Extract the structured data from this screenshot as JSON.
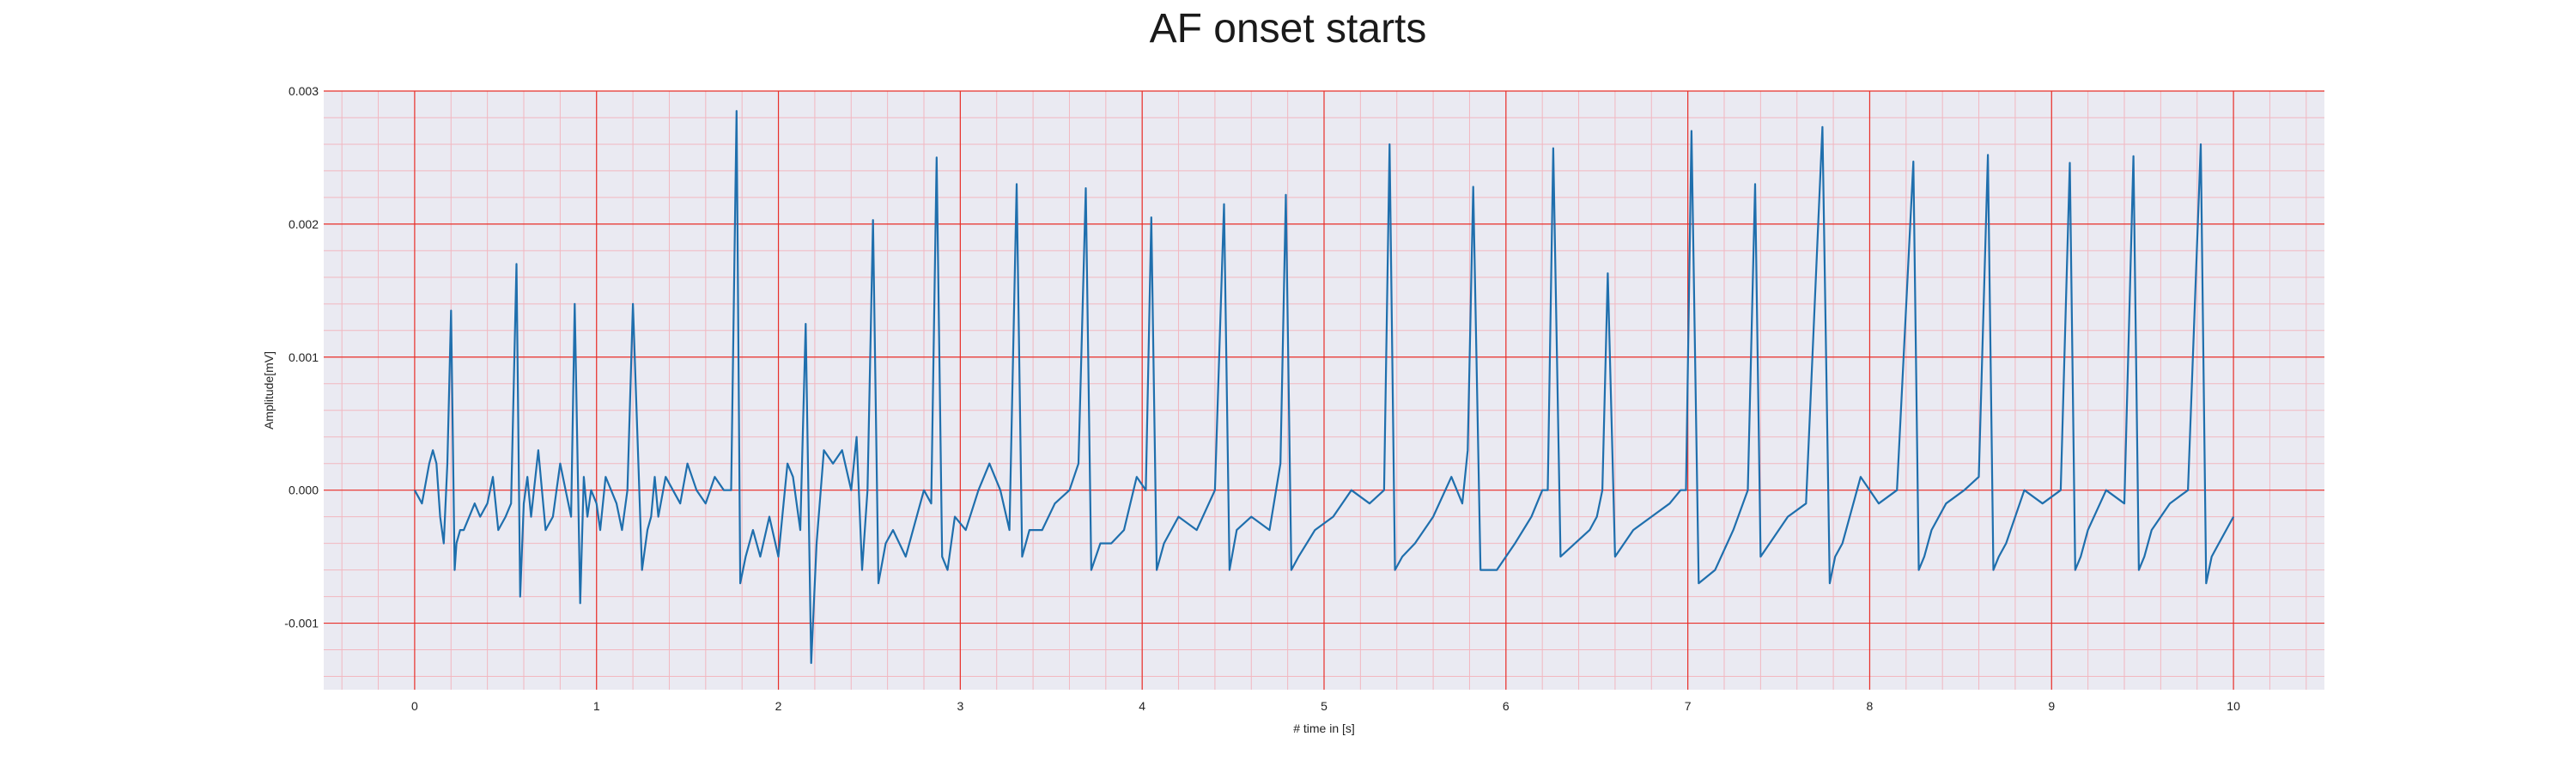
{
  "chart_data": {
    "type": "line",
    "title": "AF onset starts",
    "xlabel": "# time in [s]",
    "ylabel": "Amplitude[mV]",
    "xlim": [
      -0.5,
      10.5
    ],
    "ylim": [
      -0.0015,
      0.003
    ],
    "xticks": [
      0,
      1,
      2,
      3,
      4,
      5,
      6,
      7,
      8,
      9,
      10
    ],
    "xtick_labels": [
      "0",
      "1",
      "2",
      "3",
      "4",
      "5",
      "6",
      "7",
      "8",
      "9",
      "10"
    ],
    "yticks": [
      -0.001,
      0.0,
      0.001,
      0.002,
      0.003
    ],
    "ytick_labels": [
      "-0.001",
      "0.000",
      "0.001",
      "0.002",
      "0.003"
    ],
    "grid": true,
    "minor_grid": true,
    "background_color": "#eaeaf2",
    "major_grid_color": "#e8302a",
    "minor_grid_color": "#f2b7c0",
    "series": [
      {
        "color": "#1f6fad",
        "x": [
          0.0,
          0.04,
          0.08,
          0.1,
          0.12,
          0.14,
          0.16,
          0.18,
          0.2,
          0.22,
          0.23,
          0.25,
          0.27,
          0.3,
          0.33,
          0.36,
          0.4,
          0.43,
          0.46,
          0.5,
          0.53,
          0.56,
          0.58,
          0.6,
          0.62,
          0.64,
          0.68,
          0.72,
          0.76,
          0.8,
          0.83,
          0.86,
          0.88,
          0.91,
          0.93,
          0.95,
          0.97,
          1.0,
          1.02,
          1.05,
          1.08,
          1.11,
          1.14,
          1.17,
          1.2,
          1.25,
          1.28,
          1.3,
          1.32,
          1.34,
          1.38,
          1.42,
          1.46,
          1.5,
          1.55,
          1.6,
          1.65,
          1.7,
          1.74,
          1.77,
          1.79,
          1.82,
          1.86,
          1.9,
          1.95,
          2.0,
          2.05,
          2.08,
          2.12,
          2.15,
          2.18,
          2.21,
          2.25,
          2.3,
          2.35,
          2.4,
          2.43,
          2.46,
          2.49,
          2.52,
          2.55,
          2.59,
          2.63,
          2.7,
          2.8,
          2.84,
          2.87,
          2.9,
          2.93,
          2.97,
          3.03,
          3.1,
          3.16,
          3.22,
          3.27,
          3.31,
          3.34,
          3.38,
          3.45,
          3.52,
          3.6,
          3.65,
          3.69,
          3.72,
          3.77,
          3.83,
          3.9,
          3.97,
          4.02,
          4.05,
          4.08,
          4.12,
          4.2,
          4.3,
          4.4,
          4.45,
          4.48,
          4.52,
          4.6,
          4.7,
          4.76,
          4.79,
          4.82,
          4.86,
          4.95,
          5.05,
          5.15,
          5.25,
          5.33,
          5.36,
          5.39,
          5.43,
          5.5,
          5.6,
          5.7,
          5.76,
          5.79,
          5.82,
          5.86,
          5.95,
          6.05,
          6.14,
          6.2,
          6.23,
          6.26,
          6.3,
          6.38,
          6.46,
          6.5,
          6.53,
          6.56,
          6.6,
          6.7,
          6.8,
          6.9,
          6.96,
          6.99,
          7.02,
          7.06,
          7.15,
          7.25,
          7.33,
          7.37,
          7.4,
          7.45,
          7.55,
          7.65,
          7.74,
          7.78,
          7.81,
          7.85,
          7.95,
          8.05,
          8.15,
          8.24,
          8.27,
          8.3,
          8.34,
          8.42,
          8.52,
          8.6,
          8.65,
          8.68,
          8.71,
          8.75,
          8.85,
          8.95,
          9.05,
          9.1,
          9.13,
          9.16,
          9.2,
          9.3,
          9.4,
          9.45,
          9.48,
          9.51,
          9.55,
          9.65,
          9.75,
          9.82,
          9.85,
          9.88,
          9.92,
          10.0
        ],
        "y": [
          0.0,
          -0.0001,
          0.0002,
          0.0003,
          0.0002,
          -0.0002,
          -0.0004,
          0.0002,
          0.00135,
          -0.0006,
          -0.0004,
          -0.0003,
          -0.0003,
          -0.0002,
          -0.0001,
          -0.0002,
          -0.0001,
          0.0001,
          -0.0003,
          -0.0002,
          -0.0001,
          0.0017,
          -0.0008,
          -0.0001,
          0.0001,
          -0.0002,
          0.0003,
          -0.0003,
          -0.0002,
          0.0002,
          0.0,
          -0.0002,
          0.0014,
          -0.00085,
          0.0001,
          -0.0002,
          0.0,
          -0.0001,
          -0.0003,
          0.0001,
          0.0,
          -0.0001,
          -0.0003,
          0.0,
          0.0014,
          -0.0006,
          -0.0003,
          -0.0002,
          0.0001,
          -0.0002,
          0.0001,
          0.0,
          -0.0001,
          0.0002,
          0.0,
          -0.0001,
          0.0001,
          0.0,
          0.0,
          0.00285,
          -0.0007,
          -0.0005,
          -0.0003,
          -0.0005,
          -0.0002,
          -0.0005,
          0.0002,
          0.0001,
          -0.0003,
          0.00125,
          -0.0013,
          -0.0004,
          0.0003,
          0.0002,
          0.0003,
          0.0,
          0.0004,
          -0.0006,
          0.0,
          0.00203,
          -0.0007,
          -0.0004,
          -0.0003,
          -0.0005,
          0.0,
          -0.0001,
          0.0025,
          -0.0005,
          -0.0006,
          -0.0002,
          -0.0003,
          0.0,
          0.0002,
          0.0,
          -0.0003,
          0.0023,
          -0.0005,
          -0.0003,
          -0.0003,
          -0.0001,
          0.0,
          0.0002,
          0.00227,
          -0.0006,
          -0.0004,
          -0.0004,
          -0.0003,
          0.0001,
          0.0,
          0.00205,
          -0.0006,
          -0.0004,
          -0.0002,
          -0.0003,
          0.0,
          0.00215,
          -0.0006,
          -0.0003,
          -0.0002,
          -0.0003,
          0.0002,
          0.00222,
          -0.0006,
          -0.0005,
          -0.0003,
          -0.0002,
          0.0,
          -0.0001,
          0.0,
          0.0026,
          -0.0006,
          -0.0005,
          -0.0004,
          -0.0002,
          0.0001,
          -0.0001,
          0.0003,
          0.00228,
          -0.0006,
          -0.0006,
          -0.0004,
          -0.0002,
          0.0,
          0.0,
          0.00257,
          -0.0005,
          -0.0004,
          -0.0003,
          -0.0002,
          0.0,
          0.00163,
          -0.0005,
          -0.0003,
          -0.0002,
          -0.0001,
          0.0,
          0.0,
          0.0027,
          -0.0007,
          -0.0006,
          -0.0003,
          0.0,
          0.0023,
          -0.0005,
          -0.0004,
          -0.0002,
          -0.0001,
          0.00273,
          -0.0007,
          -0.0005,
          -0.0004,
          0.0001,
          -0.0001,
          0.0,
          0.00247,
          -0.0006,
          -0.0005,
          -0.0003,
          -0.0001,
          0.0,
          0.0001,
          0.00252,
          -0.0006,
          -0.0005,
          -0.0004,
          0.0,
          -0.0001,
          0.0,
          0.00246,
          -0.0006,
          -0.0005,
          -0.0003,
          0.0,
          -0.0001,
          0.00251,
          -0.0006,
          -0.0005,
          -0.0003,
          -0.0001,
          0.0,
          0.0026,
          -0.0007,
          -0.0005,
          -0.0004,
          -0.0002
        ]
      }
    ]
  }
}
